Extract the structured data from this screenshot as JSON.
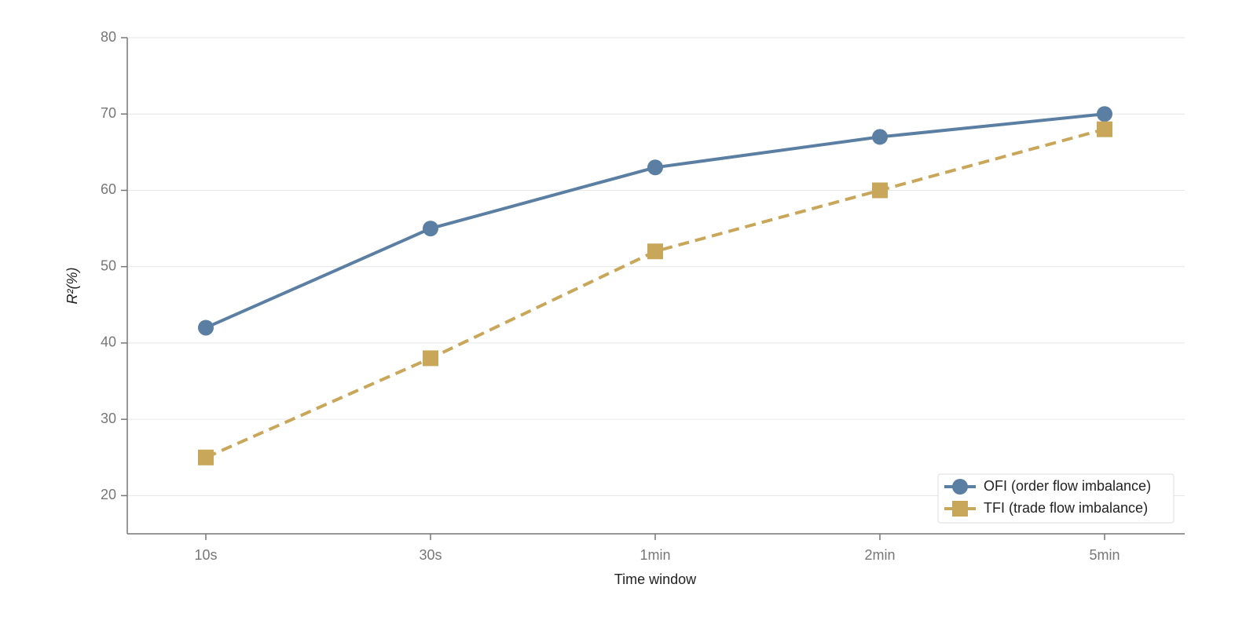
{
  "chart_data": {
    "type": "line",
    "x_label": "Time window",
    "y_label": "R²(%)",
    "categories": [
      "10s",
      "30s",
      "1min",
      "2min",
      "5min"
    ],
    "series": [
      {
        "name": "OFI (order flow imbalance)",
        "color": "#5b7fa3",
        "marker": "circle",
        "dash": false,
        "values": [
          42,
          55,
          63,
          67,
          70
        ]
      },
      {
        "name": "TFI (trade flow imbalance)",
        "color": "#c9a75a",
        "marker": "square",
        "dash": true,
        "values": [
          25,
          38,
          52,
          60,
          68
        ]
      }
    ],
    "ylim": [
      15,
      80
    ],
    "yticks": [
      20,
      30,
      40,
      50,
      60,
      70,
      80
    ],
    "grid": true,
    "legend": "lower right"
  }
}
